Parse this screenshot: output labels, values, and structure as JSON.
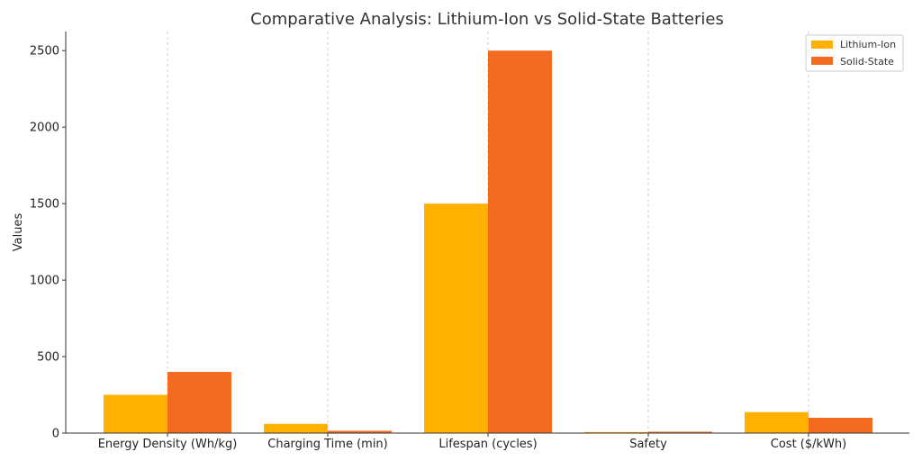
{
  "chart_data": {
    "type": "bar",
    "title": "Comparative Analysis: Lithium-Ion vs Solid-State Batteries",
    "xlabel": "",
    "ylabel": "Values",
    "categories": [
      "Energy Density (Wh/kg)",
      "Charging Time (min)",
      "Lifespan (cycles)",
      "Safety",
      "Cost ($/kWh)"
    ],
    "series": [
      {
        "name": "Lithium-Ion",
        "color": "#FFB000",
        "values": [
          250,
          60,
          1500,
          7,
          137
        ]
      },
      {
        "name": "Solid-State",
        "color": "#F26B21",
        "values": [
          400,
          15,
          2500,
          9,
          100
        ]
      }
    ],
    "ylim": [
      0,
      2625
    ],
    "yticks": [
      0,
      500,
      1000,
      1500,
      2000,
      2500
    ],
    "ytick_labels": [
      "0",
      "500",
      "1000",
      "1500",
      "2000",
      "2500"
    ],
    "grid": "vertical dashed",
    "legend_position": "top-right"
  }
}
